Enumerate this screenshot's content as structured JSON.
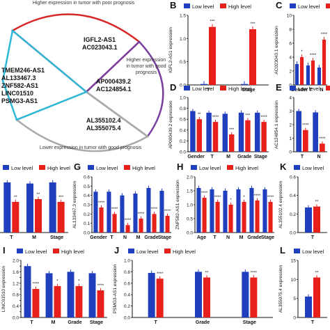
{
  "venn": {
    "top_label": "Higher expression in tumor with poor prognosis",
    "right_label": "Higher expression in tumor with good prognosis",
    "bottom_label": "Lower expression in tumor with good prognosis",
    "top_genes": [
      "IGFL2-AS1",
      "AC023043.1"
    ],
    "left_genes": [
      "TMEM246-AS1",
      "AL133467.3",
      "ZNF582-AS1",
      "LINC01510",
      "PSMG3-AS1"
    ],
    "right_genes": [
      "AP000439.2",
      "AC124854.1"
    ],
    "bottom_genes": [
      "AL355102.4",
      "AL355075.4"
    ],
    "colors": {
      "top": "#d62728",
      "right": "#7b3fa0",
      "bottom": "#aaaaaa",
      "left": "#2eb8d8"
    }
  },
  "legend": {
    "low": "Low level",
    "high": "High level"
  },
  "colors": {
    "low": "#1f3fbf",
    "high": "#e8201c"
  },
  "chart_data": [
    {
      "panel": "B",
      "type": "bar",
      "ylabel": "IGFL2-AS1 expression",
      "categories": [
        "T",
        "Stage"
      ],
      "ylim": [
        0,
        1.5
      ],
      "yticks": [
        "0.0",
        "0.5",
        "1.0",
        "1.5"
      ],
      "series": [
        {
          "name": "Low level",
          "values": [
            0.02,
            0.02
          ]
        },
        {
          "name": "High level",
          "values": [
            1.25,
            1.2
          ]
        }
      ],
      "annotations": [
        "***",
        "***"
      ]
    },
    {
      "panel": "C",
      "type": "bar",
      "ylabel": "AC023043.1 expression",
      "categories": [
        "Gender",
        "T",
        "N"
      ],
      "ylim": [
        0,
        10
      ],
      "yticks": [
        "0",
        "2",
        "4",
        "6",
        "8",
        "10"
      ],
      "series": [
        {
          "name": "Low level",
          "values": [
            3.0,
            2.8,
            2.5
          ]
        },
        {
          "name": "High level",
          "values": [
            4.0,
            3.5,
            6.5
          ]
        }
      ],
      "annotations": [
        "*",
        "****",
        "****"
      ]
    },
    {
      "panel": "D",
      "type": "bar",
      "ylabel": "AP000439.2 expression",
      "categories": [
        "Gender",
        "T",
        "M",
        "Grade",
        "Stage"
      ],
      "ylim": [
        0,
        1.0
      ],
      "yticks": [
        "0.0",
        "0.2",
        "0.4",
        "0.6",
        "0.8",
        "1.0"
      ],
      "series": [
        {
          "name": "Low level",
          "values": [
            0.75,
            0.72,
            0.7,
            0.72,
            0.72
          ]
        },
        {
          "name": "High level",
          "values": [
            0.6,
            0.55,
            0.32,
            0.58,
            0.55
          ]
        }
      ],
      "annotations": [
        "**",
        "****",
        "***",
        "***",
        "****"
      ]
    },
    {
      "panel": "E",
      "type": "bar",
      "ylabel": "AC124854.1 expression",
      "categories": [
        "T",
        "N"
      ],
      "ylim": [
        0,
        4
      ],
      "yticks": [
        "0",
        "1",
        "2",
        "3",
        "4"
      ],
      "series": [
        {
          "name": "Low level",
          "values": [
            3.0,
            2.9
          ]
        },
        {
          "name": "High level",
          "values": [
            1.6,
            0.6
          ]
        }
      ],
      "annotations": [
        "****",
        "****"
      ]
    },
    {
      "panel": "F",
      "type": "bar",
      "categories": [
        "T",
        "M",
        "Stage"
      ],
      "series": [
        {
          "name": "Low level",
          "values": [
            0.9,
            0.88,
            0.9
          ]
        },
        {
          "name": "High level",
          "values": [
            0.55,
            0.6,
            0.55
          ]
        }
      ],
      "annotations": [
        "**",
        "**",
        "***"
      ]
    },
    {
      "panel": "G",
      "type": "bar",
      "ylabel": "AL133467.3 expression",
      "categories": [
        "Gender",
        "T",
        "N",
        "M",
        "Grade",
        "Stage"
      ],
      "ylim": [
        0,
        0.6
      ],
      "yticks": [
        "0.0",
        "0.1",
        "0.2",
        "0.3",
        "0.4",
        "0.5",
        "0.6"
      ],
      "series": [
        {
          "name": "Low level",
          "values": [
            0.44,
            0.44,
            0.4,
            0.42,
            0.48,
            0.45
          ]
        },
        {
          "name": "High level",
          "values": [
            0.27,
            0.2,
            0.08,
            0.15,
            0.2,
            0.18
          ]
        }
      ],
      "annotations": [
        "****",
        "****",
        "****",
        "****",
        "****",
        "****"
      ]
    },
    {
      "panel": "H",
      "type": "bar",
      "ylabel": "ZNF582-AS1 expression",
      "categories": [
        "Age",
        "T",
        "N",
        "M",
        "Grade",
        "Stage"
      ],
      "ylim": [
        0,
        2.0
      ],
      "yticks": [
        "0.0",
        "0.5",
        "1.0",
        "1.5",
        "2.0"
      ],
      "series": [
        {
          "name": "Low level",
          "values": [
            1.6,
            1.55,
            1.5,
            1.55,
            1.6,
            1.55
          ]
        },
        {
          "name": "High level",
          "values": [
            1.25,
            1.1,
            1.0,
            1.1,
            1.15,
            1.1
          ]
        }
      ],
      "annotations": [
        "****",
        "****",
        "*",
        "*",
        "****",
        "****"
      ]
    },
    {
      "panel": "K",
      "type": "bar",
      "ylabel": "AL355102.4 expression",
      "categories": [
        "T"
      ],
      "ylim": [
        0,
        0.6
      ],
      "yticks": [
        "0.0",
        "0.2",
        "0.4",
        "0.6"
      ],
      "series": [
        {
          "name": "Low level",
          "values": [
            0.27
          ]
        },
        {
          "name": "High level",
          "values": [
            0.28
          ]
        }
      ],
      "annotations": [
        "**"
      ]
    },
    {
      "panel": "I",
      "type": "bar",
      "ylabel": "LINC01510 expression",
      "categories": [
        "T",
        "M",
        "Grade",
        "Stage"
      ],
      "ylim": [
        0,
        2.0
      ],
      "yticks": [
        "0.0",
        "0.2",
        "0.4",
        "0.6",
        "0.8",
        "1.0",
        "1.2",
        "1.4",
        "1.6",
        "1.8",
        "2.0"
      ],
      "series": [
        {
          "name": "Low level",
          "values": [
            1.8,
            1.55,
            1.6,
            1.55
          ]
        },
        {
          "name": "High level",
          "values": [
            1.0,
            1.1,
            1.1,
            0.95
          ]
        }
      ],
      "annotations": [
        "****",
        "*",
        "*",
        "****"
      ]
    },
    {
      "panel": "J",
      "type": "bar",
      "ylabel": "PSMG3-AS1 expression",
      "categories": [
        "T",
        "Grade",
        "Stage"
      ],
      "ylim": [
        0,
        1.0
      ],
      "yticks": [
        "0.0",
        "0.2",
        "0.4",
        "0.6",
        "0.8",
        "1.0"
      ],
      "series": [
        {
          "name": "Low level",
          "values": [
            0.78,
            0.8,
            0.8
          ]
        },
        {
          "name": "High level",
          "values": [
            0.68,
            0.7,
            0.7
          ]
        }
      ],
      "annotations": [
        "****",
        "**",
        "****"
      ]
    },
    {
      "panel": "L",
      "type": "bar",
      "ylabel": "AL355075.4 expression",
      "categories": [
        "T"
      ],
      "ylim": [
        0,
        15
      ],
      "yticks": [
        "0",
        "5",
        "10",
        "15"
      ],
      "series": [
        {
          "name": "Low level",
          "values": [
            5.5
          ]
        },
        {
          "name": "High level",
          "values": [
            10.5
          ]
        }
      ],
      "annotations": [
        "**"
      ]
    }
  ]
}
